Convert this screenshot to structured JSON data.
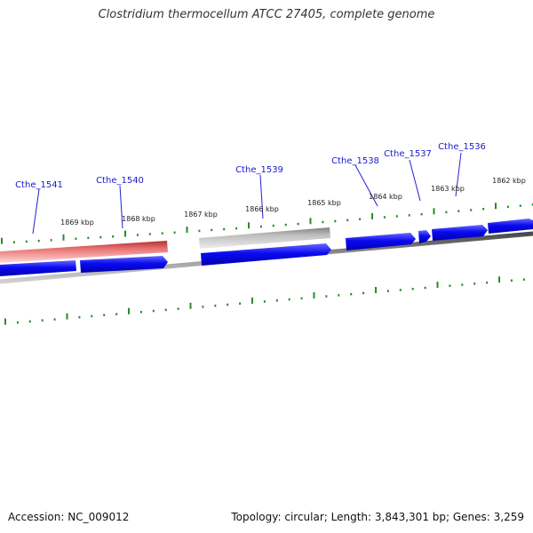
{
  "title": "Clostridium thermocellum ATCC 27405, complete genome",
  "footer": {
    "accession": "Accession: NC_009012",
    "summary": "Topology: circular; Length: 3,843,301 bp; Genes: 3,259"
  },
  "ruler": {
    "labels": [
      "1862 kbp",
      "1863 kbp",
      "1864 kbp",
      "1865 kbp",
      "1866 kbp",
      "1867 kbp",
      "1868 kbp",
      "1869 kbp"
    ]
  },
  "genes": [
    {
      "name": "Cthe_1536"
    },
    {
      "name": "Cthe_1537"
    },
    {
      "name": "Cthe_1538"
    },
    {
      "name": "Cthe_1539"
    },
    {
      "name": "Cthe_1540"
    },
    {
      "name": "Cthe_1541"
    }
  ],
  "colors": {
    "cds": "#0a0af0",
    "gene_red": "#e86a6a",
    "gene_gray": "#b0b0b0",
    "backbone": "#7a7a7a",
    "tick": "#2a8a2a",
    "gene_label": "#1a1acc"
  }
}
